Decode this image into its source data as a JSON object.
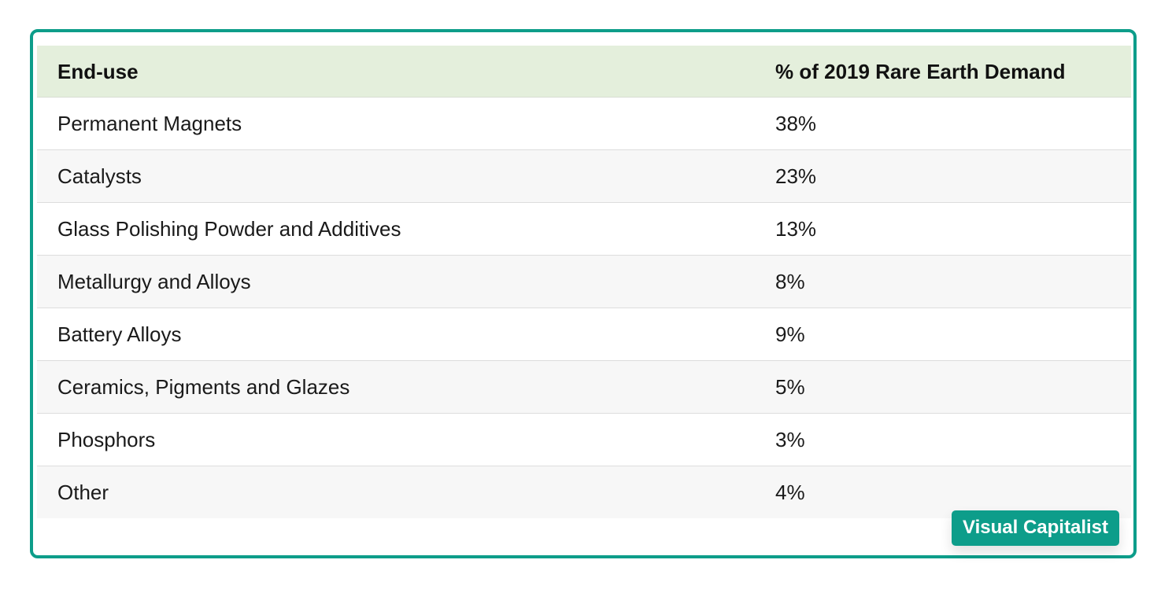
{
  "table": {
    "headers": [
      "End-use",
      "% of 2019 Rare Earth Demand"
    ],
    "rows": [
      [
        "Permanent Magnets",
        "38%"
      ],
      [
        "Catalysts",
        "23%"
      ],
      [
        "Glass Polishing Powder and Additives",
        "13%"
      ],
      [
        "Metallurgy and Alloys",
        "8%"
      ],
      [
        "Battery Alloys",
        "9%"
      ],
      [
        "Ceramics, Pigments and Glazes",
        "5%"
      ],
      [
        "Phosphors",
        "3%"
      ],
      [
        "Other",
        "4%"
      ]
    ]
  },
  "badge": {
    "label": "Visual Capitalist"
  },
  "colors": {
    "accent": "#0d9d8a",
    "header_bg": "#e4efdc",
    "stripe": "#f7f7f7"
  }
}
